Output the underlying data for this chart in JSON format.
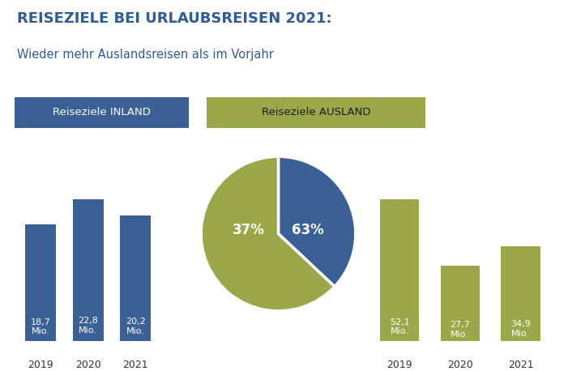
{
  "title_bold": "REISEZIELE BEI URLAUBSREISEN 2021:",
  "title_sub": "Wieder mehr Auslandsreisen als im Vorjahr",
  "label_inland": "Reiseziele INLAND",
  "label_ausland": "Reiseziele AUSLAND",
  "inland_years": [
    "2019",
    "2020",
    "2021"
  ],
  "inland_values": [
    18.7,
    22.8,
    20.2
  ],
  "inland_labels": [
    "18,7\nMio.",
    "22,8\nMio.",
    "20,2\nMio."
  ],
  "ausland_years": [
    "2019",
    "2020",
    "2021"
  ],
  "ausland_values": [
    52.1,
    27.7,
    34.9
  ],
  "ausland_labels": [
    "52,1\nMio.",
    "27,7\nMio.",
    "34,9\nMio."
  ],
  "pie_inland_pct": 37,
  "pie_ausland_pct": 63,
  "color_inland": "#3A6096",
  "color_ausland": "#9AA84A",
  "color_title": "#2E5B9A",
  "background": "#FFFFFF",
  "tick_color": "#333333",
  "bar_label_color_inland": "#FFFFFF",
  "bar_label_color_ausland": "#FFFFFF",
  "ausland_legend_text_color": "#1a1a1a"
}
